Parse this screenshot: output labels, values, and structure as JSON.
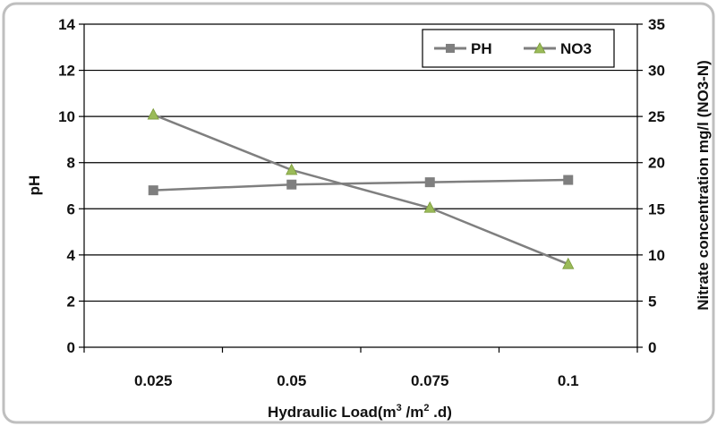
{
  "chart_data": {
    "type": "line",
    "categories": [
      "0.025",
      "0.05",
      "0.075",
      "0.1"
    ],
    "series": [
      {
        "name": "PH",
        "axis": "left",
        "marker": "square",
        "values": [
          6.8,
          7.05,
          7.15,
          7.25
        ]
      },
      {
        "name": "NO3",
        "axis": "right",
        "marker": "triangle",
        "values": [
          25.2,
          19.2,
          15.1,
          9.0
        ]
      }
    ],
    "y_left": {
      "label": "pH",
      "ylim": [
        0,
        14
      ],
      "ticks": [
        "0",
        "2",
        "4",
        "6",
        "8",
        "10",
        "12",
        "14"
      ]
    },
    "y_right": {
      "label": "Nitrate concentration mg/l (NO3-N)",
      "ylim": [
        0,
        35
      ],
      "ticks": [
        "0",
        "5",
        "10",
        "15",
        "20",
        "25",
        "30",
        "35"
      ]
    },
    "xlabel": {
      "main": "Hydraulic Load(m",
      "sup1": "3",
      "mid": " /m",
      "sup2": "2",
      "end": " .d)"
    },
    "grid": "horizontal",
    "legend_position": "top-right",
    "colors": {
      "line": "#7f7f7f",
      "square_marker": "#7f7f7f",
      "triangle_marker": "#9bbb59",
      "grid": "#000000",
      "frame": "#bfbfbf"
    }
  }
}
